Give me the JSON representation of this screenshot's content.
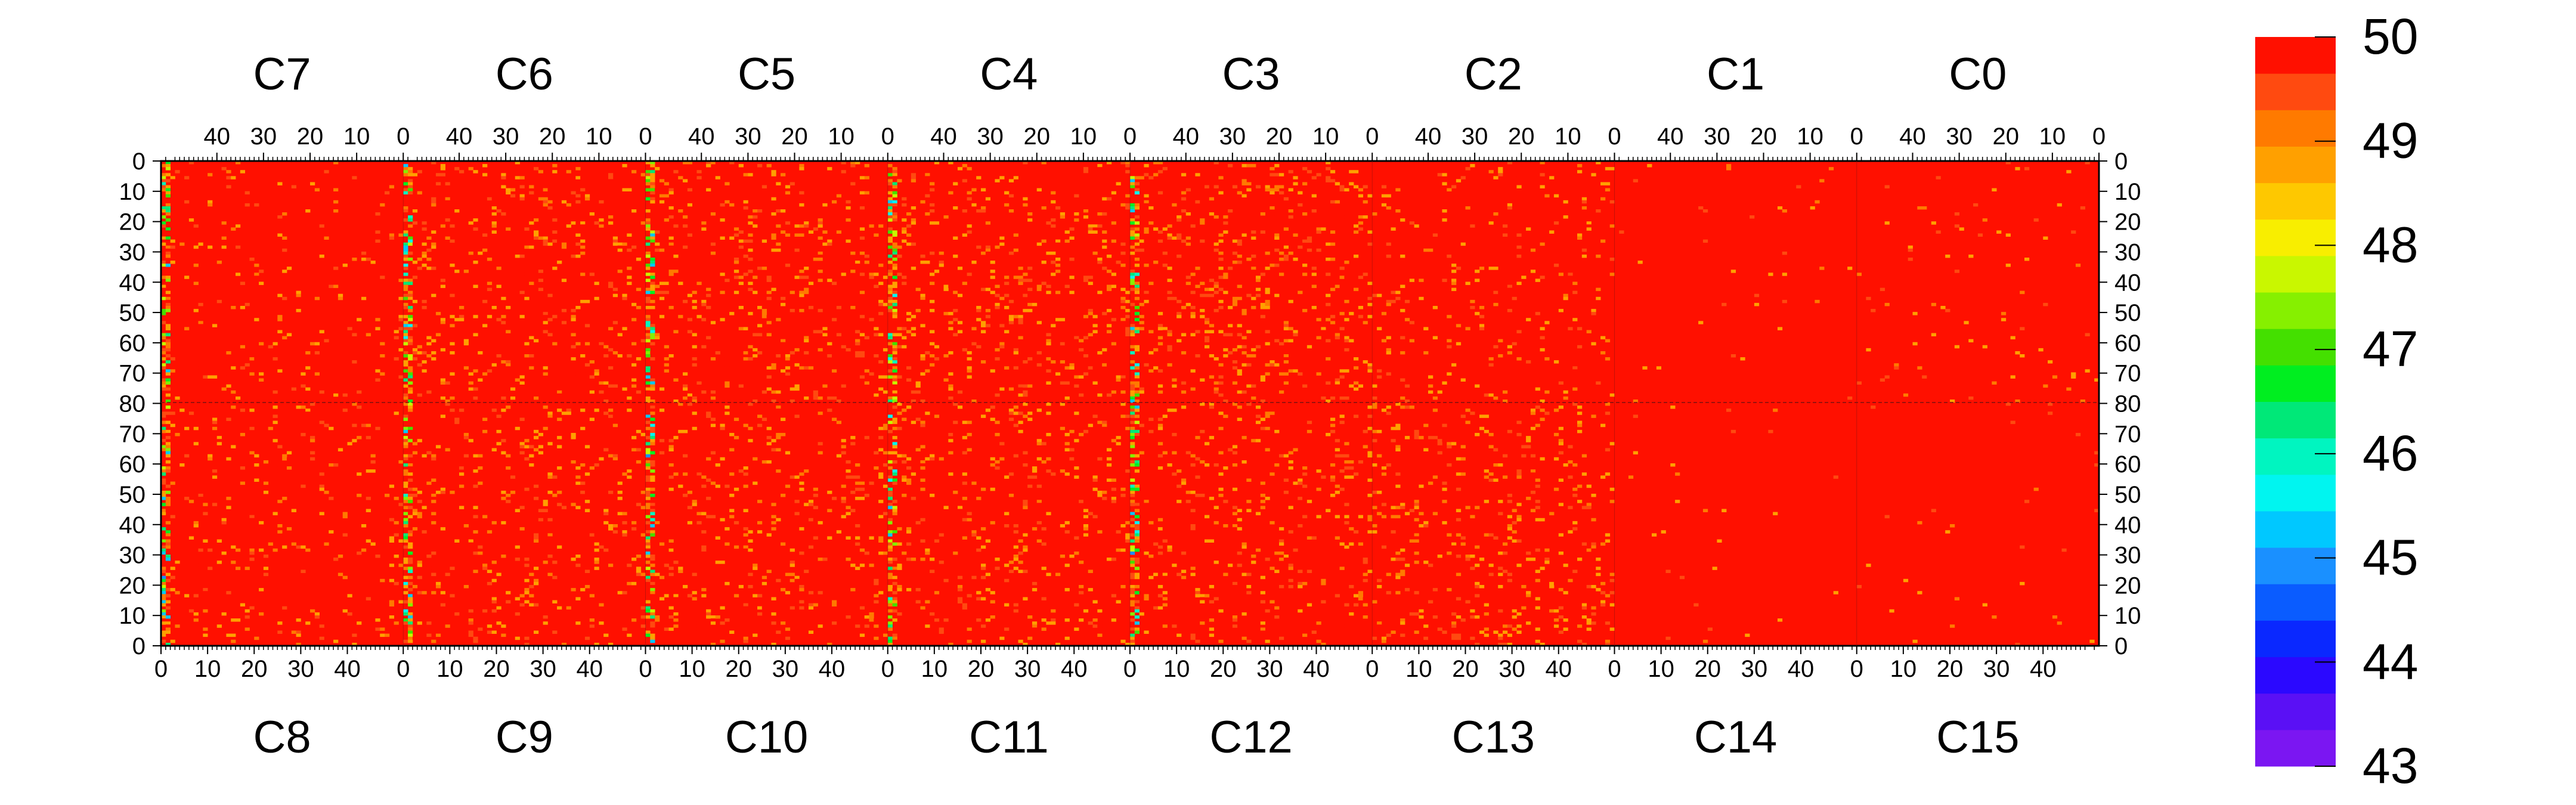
{
  "chart_data": {
    "type": "heatmap",
    "title": "",
    "colorbar": {
      "min": 43,
      "max": 50,
      "labels": [
        "50",
        "49",
        "48",
        "47",
        "46",
        "45",
        "44",
        "43"
      ],
      "label_values": [
        50,
        49,
        48,
        47,
        46,
        45,
        44,
        43
      ],
      "bands": [
        "#7b16f2",
        "#5a10f5",
        "#2b08ff",
        "#0a28ff",
        "#0a5cff",
        "#1a90ff",
        "#00c8ff",
        "#00f5f0",
        "#00f5c0",
        "#00e878",
        "#00ee20",
        "#44e000",
        "#86f000",
        "#c9f700",
        "#f8ee00",
        "#fec800",
        "#ffa000",
        "#ff7a00",
        "#ff4a10",
        "#ff1000"
      ]
    },
    "top_chips": [
      "C7",
      "C6",
      "C5",
      "C4",
      "C3",
      "C2",
      "C1",
      "C0"
    ],
    "bottom_chips": [
      "C8",
      "C9",
      "C10",
      "C11",
      "C12",
      "C13",
      "C14",
      "C15"
    ],
    "top_axis_ticks": [
      "40",
      "30",
      "20",
      "10",
      "0"
    ],
    "bottom_axis_ticks": [
      "0",
      "10",
      "20",
      "30",
      "40"
    ],
    "left_y_ticks": [
      "0",
      "10",
      "20",
      "30",
      "40",
      "50",
      "60",
      "70",
      "80",
      "70",
      "60",
      "50",
      "40",
      "30",
      "20",
      "10",
      "0"
    ],
    "right_y_ticks": [
      "0",
      "10",
      "20",
      "30",
      "40",
      "50",
      "60",
      "70",
      "80",
      "70",
      "60",
      "50",
      "40",
      "30",
      "20",
      "10",
      "0"
    ],
    "columns_per_chip": 52,
    "rows_per_half": 80,
    "dominant_value": 50,
    "noise_level_per_chip_top": [
      0.05,
      0.1,
      0.12,
      0.12,
      0.14,
      0.06,
      0.015,
      0.02
    ],
    "noise_level_per_chip_bottom": [
      0.07,
      0.1,
      0.1,
      0.1,
      0.1,
      0.12,
      0.01,
      0.01
    ],
    "edge_column_low_values": [
      46,
      47,
      47,
      46,
      45
    ]
  }
}
